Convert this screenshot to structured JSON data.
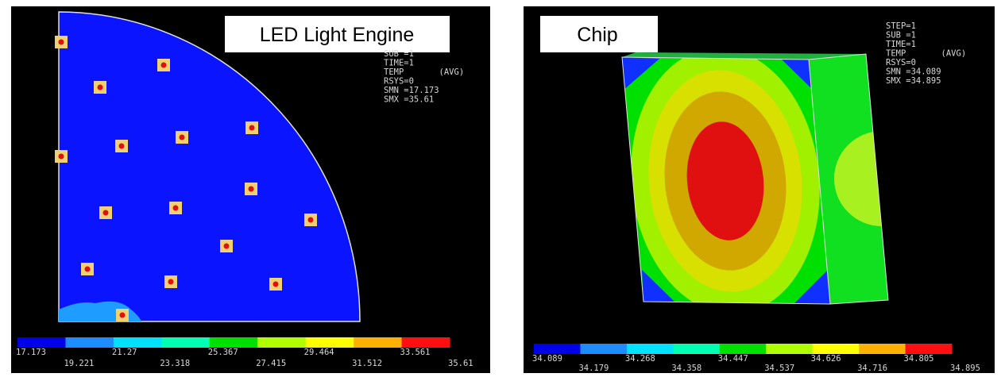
{
  "panels": [
    {
      "title": "LED Light Engine",
      "info": [
        "SUB =1",
        "TIME=1",
        "TEMP       (AVG)",
        "RSYS=0",
        "SMN =17.173",
        "SMX =35.61"
      ],
      "legend": [
        "17.173",
        "19.221",
        "21.27",
        "23.318",
        "25.367",
        "27.415",
        "29.464",
        "31.512",
        "33.561",
        "35.61"
      ]
    },
    {
      "title": "Chip",
      "info": [
        "STEP=1",
        "SUB =1",
        "TIME=1",
        "TEMP       (AVG)",
        "RSYS=0",
        "SMN =34.089",
        "SMX =34.895"
      ],
      "legend": [
        "34.089",
        "34.179",
        "34.268",
        "34.358",
        "34.447",
        "34.537",
        "34.626",
        "34.716",
        "34.805",
        "34.895"
      ]
    }
  ],
  "legend_colors": [
    "#0000e8",
    "#1e8cff",
    "#00e0ff",
    "#00ffb0",
    "#00e000",
    "#b0ff00",
    "#ffff00",
    "#ffb000",
    "#ff1010"
  ]
}
